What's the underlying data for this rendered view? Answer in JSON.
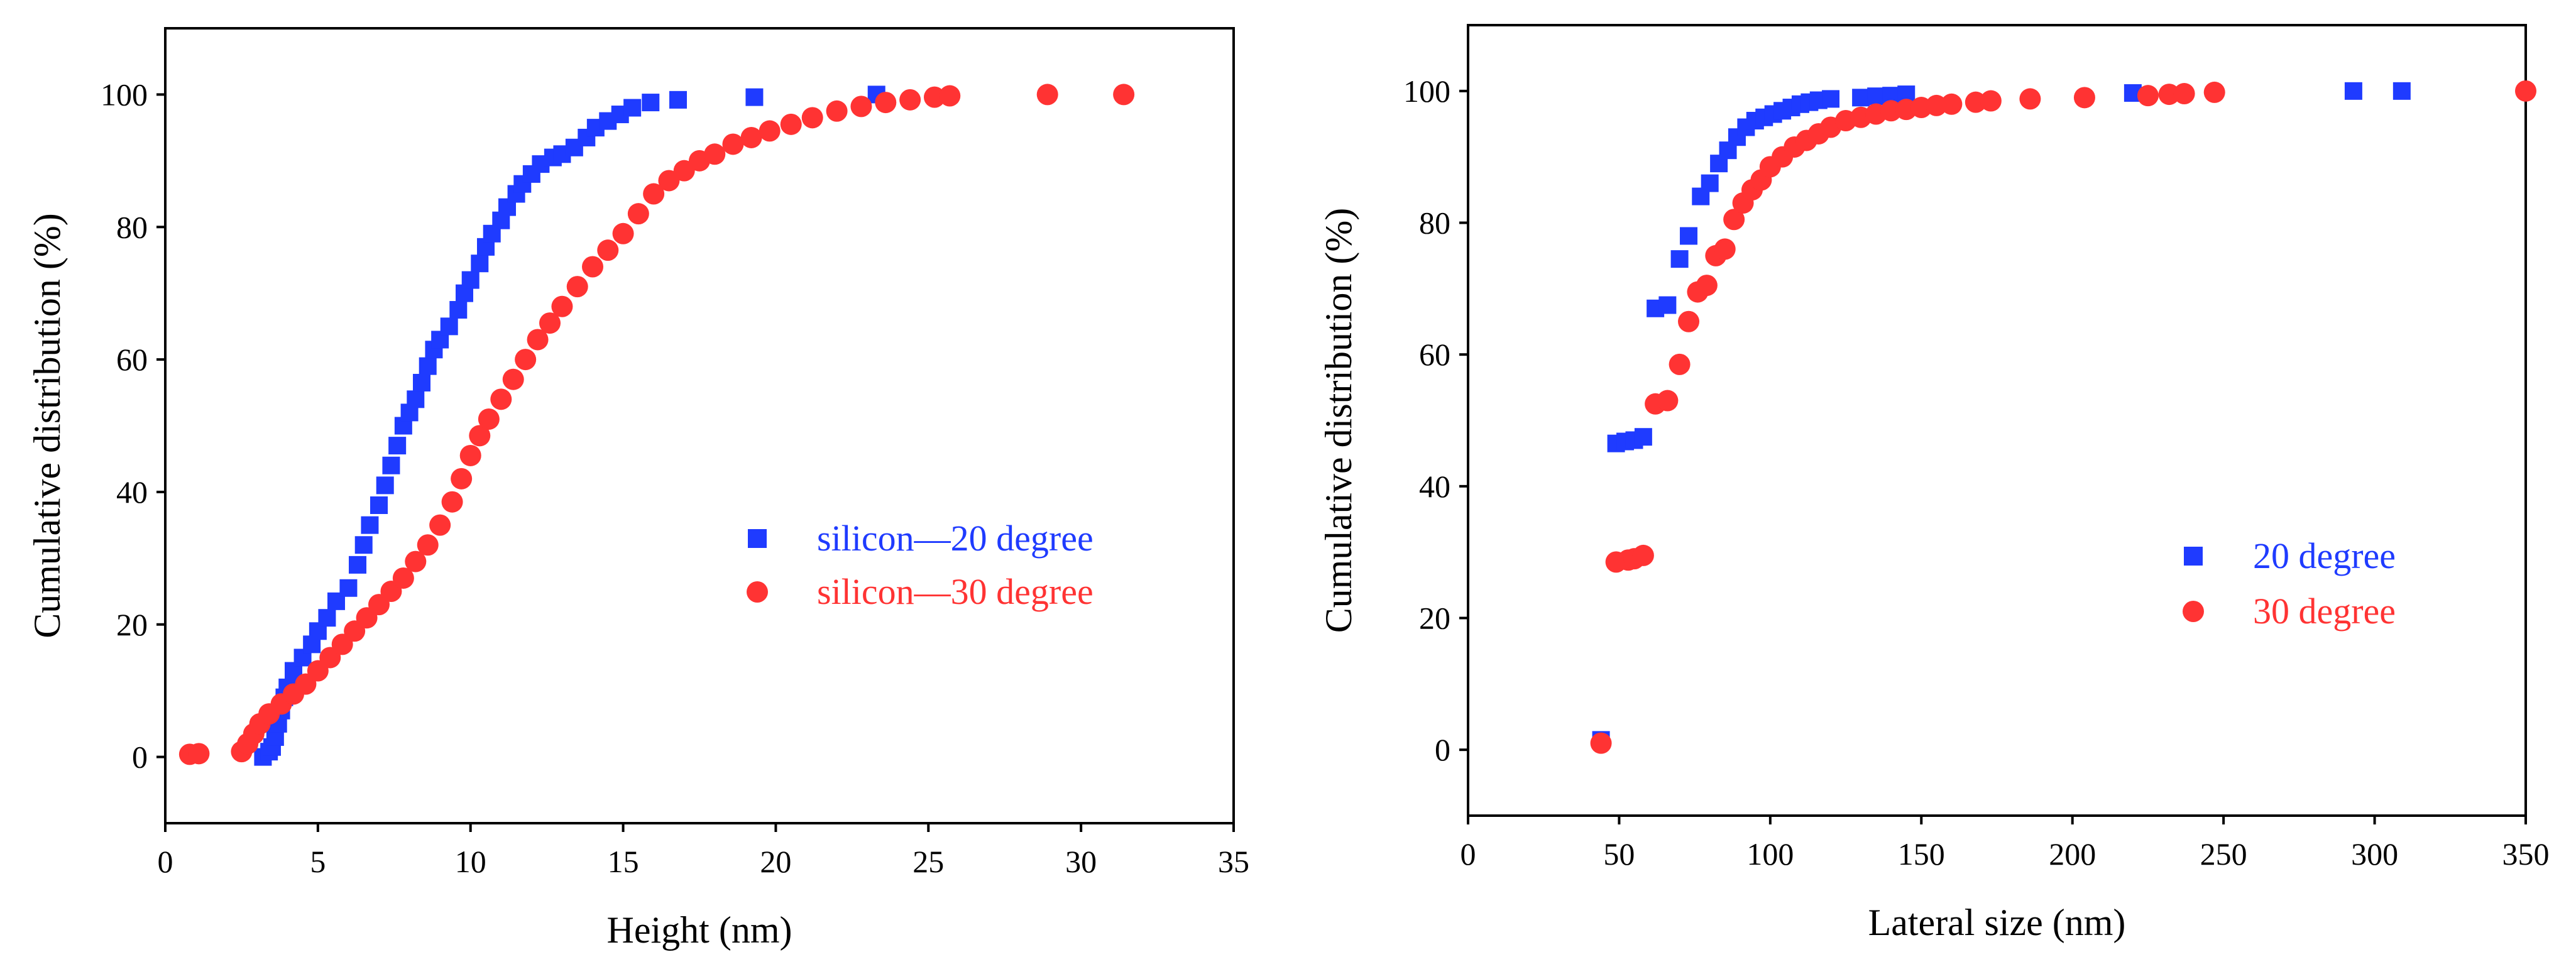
{
  "colors": {
    "blue": "#1f3bff",
    "red": "#ff3333",
    "axis": "#000000"
  },
  "chart_data": [
    {
      "type": "scatter",
      "xlabel": "Height (nm)",
      "ylabel": "Cumulative distribution (%)",
      "xlim": [
        0,
        35
      ],
      "ylim": [
        -10,
        110
      ],
      "xticks": [
        0,
        5,
        10,
        15,
        20,
        25,
        30,
        35
      ],
      "yticks": [
        0,
        20,
        40,
        60,
        80,
        100
      ],
      "legend_position": "center-right",
      "series": [
        {
          "name": "silicon—20 degree",
          "marker": "square",
          "color": "#1f3bff",
          "points": [
            [
              3.2,
              0
            ],
            [
              3.4,
              0.8
            ],
            [
              3.5,
              1.5
            ],
            [
              3.6,
              3
            ],
            [
              3.7,
              5
            ],
            [
              3.8,
              7
            ],
            [
              3.9,
              9
            ],
            [
              4.0,
              10.5
            ],
            [
              4.2,
              13
            ],
            [
              4.5,
              15
            ],
            [
              4.8,
              17
            ],
            [
              5.0,
              19
            ],
            [
              5.3,
              21
            ],
            [
              5.6,
              23.5
            ],
            [
              6.0,
              25.5
            ],
            [
              6.3,
              29
            ],
            [
              6.5,
              32
            ],
            [
              6.7,
              35
            ],
            [
              7.0,
              38
            ],
            [
              7.2,
              41
            ],
            [
              7.4,
              44
            ],
            [
              7.6,
              47
            ],
            [
              7.8,
              50
            ],
            [
              8.0,
              52
            ],
            [
              8.2,
              54
            ],
            [
              8.4,
              56.5
            ],
            [
              8.6,
              59
            ],
            [
              8.8,
              61.5
            ],
            [
              9.0,
              63
            ],
            [
              9.3,
              65
            ],
            [
              9.6,
              67.5
            ],
            [
              9.8,
              70
            ],
            [
              10.0,
              72
            ],
            [
              10.3,
              74.5
            ],
            [
              10.5,
              77
            ],
            [
              10.7,
              79
            ],
            [
              11.0,
              81
            ],
            [
              11.2,
              83
            ],
            [
              11.5,
              85
            ],
            [
              11.7,
              86.5
            ],
            [
              12.0,
              88
            ],
            [
              12.3,
              89.5
            ],
            [
              12.7,
              90.5
            ],
            [
              13.0,
              91
            ],
            [
              13.4,
              92
            ],
            [
              13.8,
              93.5
            ],
            [
              14.1,
              95
            ],
            [
              14.5,
              96
            ],
            [
              14.9,
              97
            ],
            [
              15.3,
              98
            ],
            [
              15.9,
              98.8
            ],
            [
              16.8,
              99.2
            ],
            [
              19.3,
              99.6
            ],
            [
              23.3,
              100
            ]
          ]
        },
        {
          "name": "silicon—30 degree",
          "marker": "circle",
          "color": "#ff3333",
          "points": [
            [
              0.8,
              0.4
            ],
            [
              1.1,
              0.5
            ],
            [
              2.5,
              0.8
            ],
            [
              2.7,
              2
            ],
            [
              2.9,
              3.5
            ],
            [
              3.1,
              5
            ],
            [
              3.4,
              6.5
            ],
            [
              3.8,
              8
            ],
            [
              4.2,
              9.5
            ],
            [
              4.6,
              11
            ],
            [
              5.0,
              13
            ],
            [
              5.4,
              15
            ],
            [
              5.8,
              17
            ],
            [
              6.2,
              19
            ],
            [
              6.6,
              21
            ],
            [
              7.0,
              23
            ],
            [
              7.4,
              25
            ],
            [
              7.8,
              27
            ],
            [
              8.2,
              29.5
            ],
            [
              8.6,
              32
            ],
            [
              9.0,
              35
            ],
            [
              9.4,
              38.5
            ],
            [
              9.7,
              42
            ],
            [
              10.0,
              45.5
            ],
            [
              10.3,
              48.5
            ],
            [
              10.6,
              51
            ],
            [
              11.0,
              54
            ],
            [
              11.4,
              57
            ],
            [
              11.8,
              60
            ],
            [
              12.2,
              63
            ],
            [
              12.6,
              65.5
            ],
            [
              13.0,
              68
            ],
            [
              13.5,
              71
            ],
            [
              14.0,
              74
            ],
            [
              14.5,
              76.5
            ],
            [
              15.0,
              79
            ],
            [
              15.5,
              82
            ],
            [
              16.0,
              85
            ],
            [
              16.5,
              87
            ],
            [
              17.0,
              88.5
            ],
            [
              17.5,
              90
            ],
            [
              18.0,
              91
            ],
            [
              18.6,
              92.5
            ],
            [
              19.2,
              93.5
            ],
            [
              19.8,
              94.5
            ],
            [
              20.5,
              95.5
            ],
            [
              21.2,
              96.5
            ],
            [
              22.0,
              97.5
            ],
            [
              22.8,
              98.2
            ],
            [
              23.6,
              98.8
            ],
            [
              24.4,
              99.2
            ],
            [
              25.2,
              99.6
            ],
            [
              25.7,
              99.8
            ],
            [
              28.9,
              100
            ],
            [
              31.4,
              100
            ]
          ]
        }
      ]
    },
    {
      "type": "scatter",
      "xlabel": "Lateral size (nm)",
      "ylabel": "Cumulative distribution (%)",
      "xlim": [
        0,
        350
      ],
      "ylim": [
        -10,
        110
      ],
      "xticks": [
        0,
        50,
        100,
        150,
        200,
        250,
        300,
        350
      ],
      "yticks": [
        0,
        20,
        40,
        60,
        80,
        100
      ],
      "legend_position": "lower-right",
      "series": [
        {
          "name": "20 degree",
          "marker": "square",
          "color": "#1f3bff",
          "points": [
            [
              44,
              1.5
            ],
            [
              49,
              46.5
            ],
            [
              52,
              46.8
            ],
            [
              55,
              47
            ],
            [
              58,
              47.5
            ],
            [
              62,
              67
            ],
            [
              66,
              67.5
            ],
            [
              70,
              74.5
            ],
            [
              73,
              78
            ],
            [
              77,
              84
            ],
            [
              80,
              86
            ],
            [
              83,
              89
            ],
            [
              86,
              91
            ],
            [
              89,
              93
            ],
            [
              92,
              94.5
            ],
            [
              95,
              95.5
            ],
            [
              98,
              96
            ],
            [
              101,
              96.5
            ],
            [
              104,
              97
            ],
            [
              107,
              97.5
            ],
            [
              110,
              98
            ],
            [
              113,
              98.3
            ],
            [
              116,
              98.6
            ],
            [
              120,
              98.8
            ],
            [
              130,
              99
            ],
            [
              135,
              99.2
            ],
            [
              140,
              99.3
            ],
            [
              145,
              99.5
            ],
            [
              220,
              99.7
            ],
            [
              293,
              100
            ],
            [
              309,
              100
            ]
          ]
        },
        {
          "name": "30 degree",
          "marker": "circle",
          "color": "#ff3333",
          "points": [
            [
              44,
              1
            ],
            [
              49,
              28.5
            ],
            [
              53,
              28.8
            ],
            [
              55,
              29
            ],
            [
              58,
              29.5
            ],
            [
              62,
              52.5
            ],
            [
              66,
              53
            ],
            [
              70,
              58.5
            ],
            [
              73,
              65
            ],
            [
              76,
              69.5
            ],
            [
              79,
              70.5
            ],
            [
              82,
              75
            ],
            [
              85,
              76
            ],
            [
              88,
              80.5
            ],
            [
              91,
              83
            ],
            [
              94,
              85
            ],
            [
              97,
              86.5
            ],
            [
              100,
              88.5
            ],
            [
              104,
              90
            ],
            [
              108,
              91.5
            ],
            [
              112,
              92.5
            ],
            [
              116,
              93.5
            ],
            [
              120,
              94.5
            ],
            [
              125,
              95.5
            ],
            [
              130,
              96
            ],
            [
              135,
              96.5
            ],
            [
              140,
              97
            ],
            [
              145,
              97.2
            ],
            [
              150,
              97.5
            ],
            [
              155,
              97.8
            ],
            [
              160,
              98
            ],
            [
              168,
              98.3
            ],
            [
              173,
              98.5
            ],
            [
              186,
              98.8
            ],
            [
              204,
              99
            ],
            [
              225,
              99.3
            ],
            [
              232,
              99.5
            ],
            [
              237,
              99.6
            ],
            [
              247,
              99.8
            ],
            [
              350,
              100
            ]
          ]
        }
      ]
    }
  ]
}
